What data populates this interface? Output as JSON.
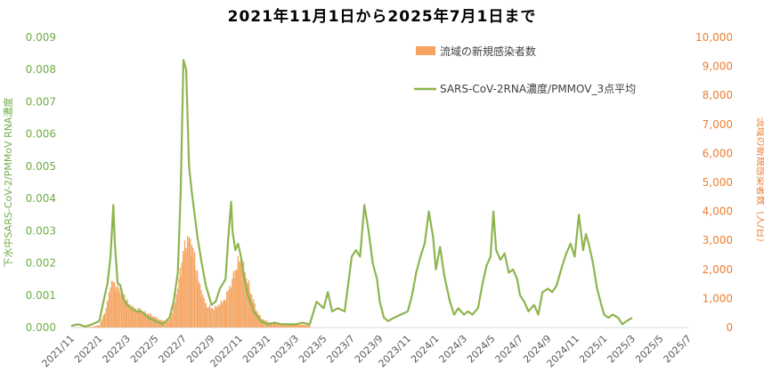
{
  "chart_data": {
    "type": "bar+line",
    "title": "2021年11月1日から2025年7月1日まで",
    "y_left_label": "下水中SARS-CoV-2/PMMoV RNA濃度",
    "y_right_label": "流域の新規感染者数（人/日）",
    "y_left_ticks": [
      "0.000",
      "0.001",
      "0.002",
      "0.003",
      "0.004",
      "0.005",
      "0.006",
      "0.007",
      "0.008",
      "0.009"
    ],
    "y_right_ticks": [
      "0",
      "1,000",
      "2,000",
      "3,000",
      "4,000",
      "5,000",
      "6,000",
      "7,000",
      "8,000",
      "9,000",
      "10,000"
    ],
    "y_left_range": [
      0,
      0.009
    ],
    "y_right_range": [
      0,
      10000
    ],
    "x_ticks": [
      "2021/11",
      "2022/1",
      "2022/3",
      "2022/5",
      "2022/7",
      "2022/9",
      "2022/11",
      "2023/1",
      "2023/3",
      "2023/5",
      "2023/7",
      "2023/9",
      "2023/11",
      "2024/1",
      "2024/3",
      "2024/5",
      "2024/7",
      "2024/9",
      "2024/11",
      "2025/1",
      "2025/3",
      "2025/5",
      "2025/7"
    ],
    "x_range_month_index": [
      0,
      44
    ],
    "legend": {
      "placement": "top-center"
    },
    "series": [
      {
        "name": "流域の新規感染者数",
        "kind": "bar",
        "axis": "right",
        "color": "#f4a460",
        "points": [
          [
            0,
            0
          ],
          [
            1,
            10
          ],
          [
            1.5,
            30
          ],
          [
            2,
            80
          ],
          [
            2.3,
            400
          ],
          [
            2.6,
            900
          ],
          [
            2.8,
            1450
          ],
          [
            3.0,
            1550
          ],
          [
            3.2,
            1400
          ],
          [
            3.4,
            1300
          ],
          [
            3.6,
            1200
          ],
          [
            3.8,
            1100
          ],
          [
            4,
            900
          ],
          [
            4.3,
            700
          ],
          [
            4.6,
            650
          ],
          [
            5,
            600
          ],
          [
            5.3,
            500
          ],
          [
            5.6,
            450
          ],
          [
            6,
            350
          ],
          [
            6.4,
            250
          ],
          [
            6.8,
            200
          ],
          [
            7,
            250
          ],
          [
            7.2,
            500
          ],
          [
            7.5,
            1100
          ],
          [
            7.8,
            2000
          ],
          [
            8,
            2600
          ],
          [
            8.2,
            2900
          ],
          [
            8.4,
            3000
          ],
          [
            8.6,
            2800
          ],
          [
            8.8,
            2400
          ],
          [
            9,
            1800
          ],
          [
            9.3,
            1200
          ],
          [
            9.6,
            800
          ],
          [
            10,
            650
          ],
          [
            10.3,
            700
          ],
          [
            10.6,
            800
          ],
          [
            11,
            1000
          ],
          [
            11.3,
            1400
          ],
          [
            11.6,
            1800
          ],
          [
            11.8,
            2100
          ],
          [
            12,
            2300
          ],
          [
            12.2,
            2200
          ],
          [
            12.4,
            1900
          ],
          [
            12.7,
            1400
          ],
          [
            13,
            900
          ],
          [
            13.3,
            500
          ],
          [
            13.6,
            300
          ],
          [
            14,
            200
          ],
          [
            14.5,
            150
          ],
          [
            15,
            130
          ],
          [
            15.5,
            120
          ],
          [
            16,
            110
          ],
          [
            16.5,
            100
          ],
          [
            17,
            90
          ]
        ]
      },
      {
        "name": "SARS-CoV-2RNA濃度/PMMOV_3点平均",
        "kind": "line",
        "axis": "left",
        "color": "#8db54e",
        "points": [
          [
            0,
            5e-05
          ],
          [
            0.5,
            0.0001
          ],
          [
            1,
            3e-05
          ],
          [
            1.5,
            0.0001
          ],
          [
            2,
            0.0002
          ],
          [
            2.3,
            0.0008
          ],
          [
            2.6,
            0.0014
          ],
          [
            2.8,
            0.0022
          ],
          [
            3.0,
            0.0038
          ],
          [
            3.1,
            0.0027
          ],
          [
            3.3,
            0.0014
          ],
          [
            3.5,
            0.0013
          ],
          [
            3.7,
            0.0009
          ],
          [
            4,
            0.0007
          ],
          [
            4.3,
            0.0006
          ],
          [
            4.6,
            0.0005
          ],
          [
            5,
            0.0005
          ],
          [
            5.5,
            0.0003
          ],
          [
            6,
            0.0002
          ],
          [
            6.5,
            0.0001
          ],
          [
            7,
            0.0003
          ],
          [
            7.3,
            0.0008
          ],
          [
            7.6,
            0.0017
          ],
          [
            7.8,
            0.0042
          ],
          [
            8.0,
            0.0083
          ],
          [
            8.2,
            0.008
          ],
          [
            8.4,
            0.005
          ],
          [
            8.6,
            0.0042
          ],
          [
            8.8,
            0.0035
          ],
          [
            9.0,
            0.0028
          ],
          [
            9.3,
            0.002
          ],
          [
            9.6,
            0.0013
          ],
          [
            10,
            0.0007
          ],
          [
            10.3,
            0.0008
          ],
          [
            10.6,
            0.0012
          ],
          [
            11,
            0.0015
          ],
          [
            11.2,
            0.0028
          ],
          [
            11.4,
            0.0039
          ],
          [
            11.5,
            0.003
          ],
          [
            11.7,
            0.0024
          ],
          [
            11.9,
            0.0026
          ],
          [
            12.1,
            0.0022
          ],
          [
            12.3,
            0.0016
          ],
          [
            12.6,
            0.001
          ],
          [
            13,
            0.0005
          ],
          [
            13.5,
            0.0002
          ],
          [
            14,
            0.0001
          ],
          [
            14.5,
            0.00015
          ],
          [
            15,
            0.0001
          ],
          [
            15.5,
            0.0001
          ],
          [
            16,
            0.0001
          ],
          [
            16.5,
            0.00015
          ],
          [
            17,
            0.0001
          ],
          [
            17.5,
            0.0008
          ],
          [
            18,
            0.0006
          ],
          [
            18.3,
            0.0011
          ],
          [
            18.6,
            0.0005
          ],
          [
            19,
            0.0006
          ],
          [
            19.5,
            0.0005
          ],
          [
            20,
            0.0022
          ],
          [
            20.3,
            0.0024
          ],
          [
            20.6,
            0.0022
          ],
          [
            20.9,
            0.0038
          ],
          [
            21.2,
            0.003
          ],
          [
            21.5,
            0.002
          ],
          [
            21.8,
            0.0015
          ],
          [
            22,
            0.0008
          ],
          [
            22.3,
            0.0003
          ],
          [
            22.6,
            0.0002
          ],
          [
            23,
            0.0003
          ],
          [
            23.5,
            0.0004
          ],
          [
            24,
            0.0005
          ],
          [
            24.3,
            0.001
          ],
          [
            24.6,
            0.0017
          ],
          [
            24.9,
            0.0022
          ],
          [
            25.2,
            0.0026
          ],
          [
            25.5,
            0.0036
          ],
          [
            25.8,
            0.0028
          ],
          [
            26,
            0.0018
          ],
          [
            26.3,
            0.0025
          ],
          [
            26.6,
            0.0016
          ],
          [
            27,
            0.0008
          ],
          [
            27.3,
            0.0004
          ],
          [
            27.6,
            0.0006
          ],
          [
            28,
            0.0004
          ],
          [
            28.3,
            0.0005
          ],
          [
            28.6,
            0.0004
          ],
          [
            29,
            0.0006
          ],
          [
            29.3,
            0.0013
          ],
          [
            29.6,
            0.0019
          ],
          [
            29.9,
            0.0022
          ],
          [
            30.1,
            0.0036
          ],
          [
            30.3,
            0.0024
          ],
          [
            30.6,
            0.0021
          ],
          [
            30.9,
            0.0023
          ],
          [
            31.2,
            0.0017
          ],
          [
            31.5,
            0.0018
          ],
          [
            31.8,
            0.0015
          ],
          [
            32,
            0.001
          ],
          [
            32.3,
            0.0008
          ],
          [
            32.6,
            0.0005
          ],
          [
            33,
            0.0007
          ],
          [
            33.3,
            0.0004
          ],
          [
            33.6,
            0.0011
          ],
          [
            34,
            0.0012
          ],
          [
            34.3,
            0.0011
          ],
          [
            34.6,
            0.0013
          ],
          [
            35,
            0.0019
          ],
          [
            35.3,
            0.0023
          ],
          [
            35.6,
            0.0026
          ],
          [
            35.9,
            0.0022
          ],
          [
            36.2,
            0.0035
          ],
          [
            36.5,
            0.0024
          ],
          [
            36.7,
            0.0029
          ],
          [
            36.9,
            0.0026
          ],
          [
            37.2,
            0.002
          ],
          [
            37.5,
            0.0012
          ],
          [
            37.8,
            0.0007
          ],
          [
            38,
            0.0004
          ],
          [
            38.3,
            0.0003
          ],
          [
            38.6,
            0.0004
          ],
          [
            39,
            0.0003
          ],
          [
            39.3,
            0.0001
          ],
          [
            39.6,
            0.0002
          ],
          [
            40,
            0.0003
          ]
        ]
      }
    ]
  }
}
